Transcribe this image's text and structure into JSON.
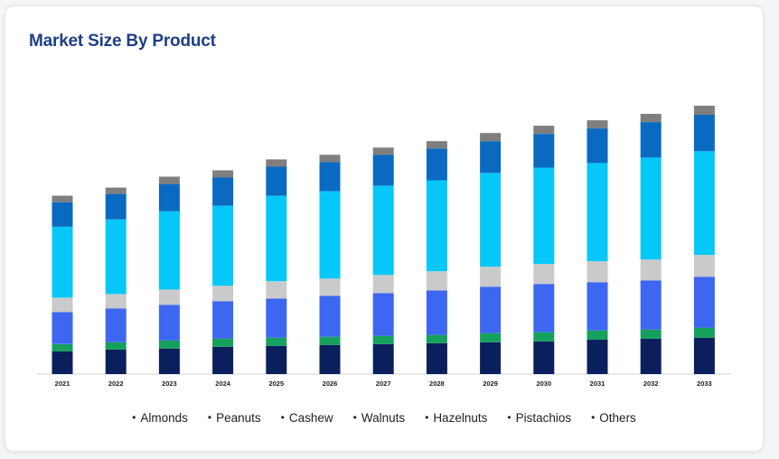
{
  "card": {
    "title": "Market Size By Product"
  },
  "chart_data": {
    "type": "bar",
    "stacked": true,
    "title": "Market Size By Product",
    "xlabel": "",
    "ylabel": "",
    "grid": false,
    "legend_position": "bottom",
    "categories": [
      "2021",
      "2022",
      "2023",
      "2024",
      "2025",
      "2026",
      "2027",
      "2028",
      "2029",
      "2030",
      "2031",
      "2032",
      "2033"
    ],
    "ylim": [
      0,
      290
    ],
    "series": [
      {
        "name": "Almonds",
        "color": "#0b1f5c",
        "values": [
          25,
          27,
          28,
          30,
          31,
          32,
          33,
          34,
          35,
          36,
          38,
          39,
          40
        ]
      },
      {
        "name": "Peanuts",
        "color": "#16a05d",
        "values": [
          8,
          8,
          9,
          9,
          9,
          9,
          9,
          9,
          10,
          10,
          10,
          10,
          11
        ]
      },
      {
        "name": "Cashew",
        "color": "#3d67f0",
        "values": [
          35,
          37,
          39,
          41,
          43,
          45,
          47,
          49,
          51,
          53,
          53,
          54,
          56
        ]
      },
      {
        "name": "Walnuts",
        "color": "#c9cacc",
        "values": [
          16,
          16,
          17,
          17,
          19,
          19,
          20,
          21,
          22,
          22,
          23,
          23,
          24
        ]
      },
      {
        "name": "Hazelnuts",
        "color": "#05c8f8",
        "values": [
          78,
          82,
          86,
          88,
          94,
          96,
          98,
          100,
          103,
          106,
          108,
          112,
          114
        ]
      },
      {
        "name": "Pistachios",
        "color": "#0a6ac2",
        "values": [
          27,
          28,
          30,
          31,
          32,
          32,
          34,
          35,
          35,
          37,
          38,
          39,
          40
        ]
      },
      {
        "name": "Others",
        "color": "#7f7f7f",
        "values": [
          7,
          7,
          8,
          8,
          8,
          8,
          8,
          8,
          9,
          9,
          9,
          9,
          10
        ]
      }
    ]
  }
}
